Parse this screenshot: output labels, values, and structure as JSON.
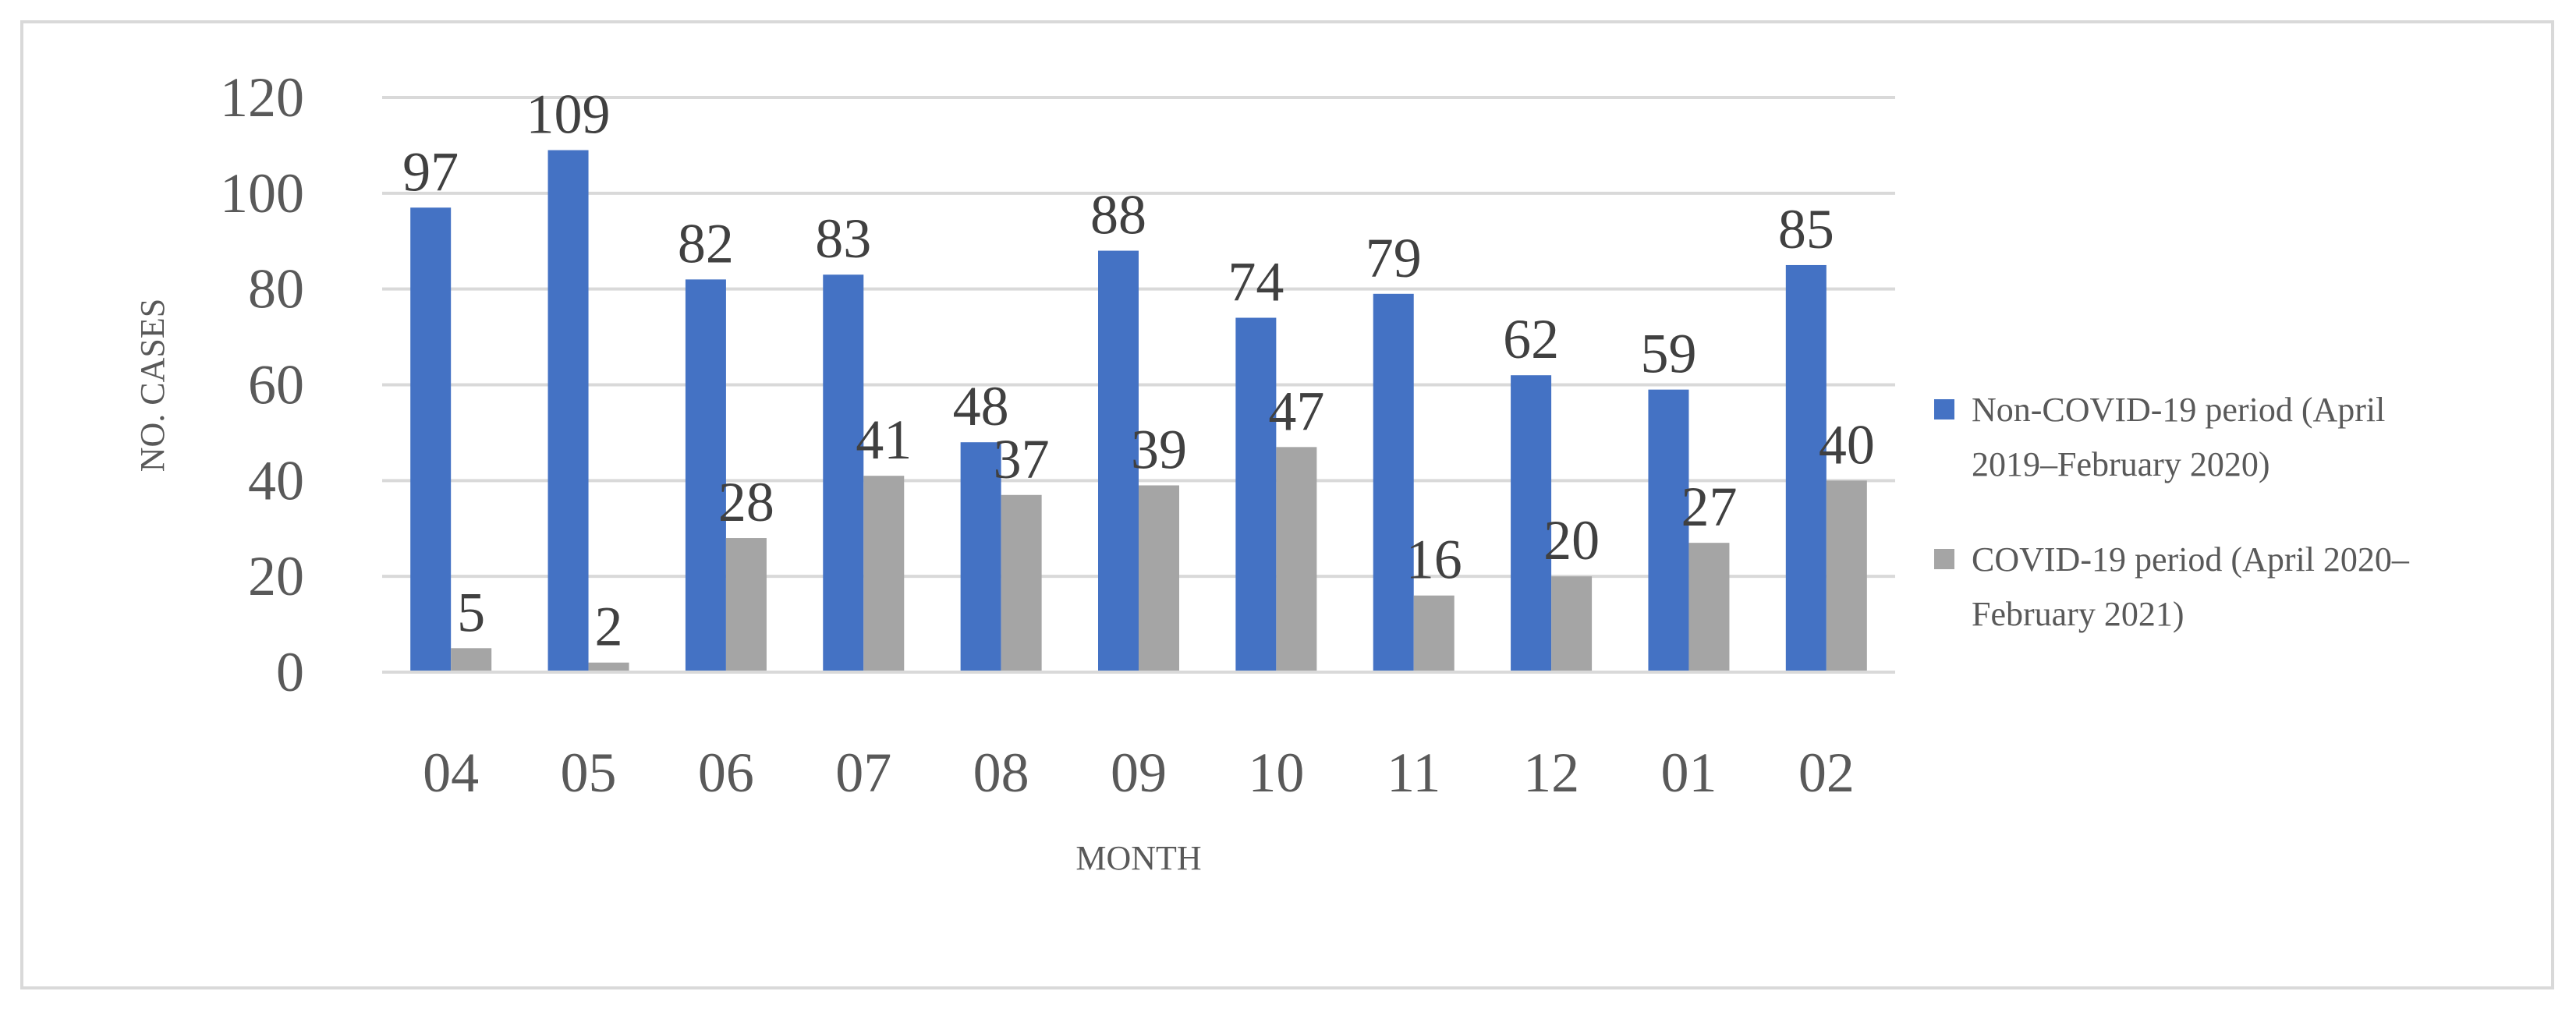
{
  "chart_data": {
    "type": "bar",
    "title": "",
    "xlabel": "MONTH",
    "ylabel": "NO. CASES",
    "categories": [
      "04",
      "05",
      "06",
      "07",
      "08",
      "09",
      "10",
      "11",
      "12",
      "01",
      "02"
    ],
    "series": [
      {
        "name": "Non-COVID-19 period (April 2019–February 2020)",
        "legend_lines": [
          "Non-COVID-19 period (April",
          "2019–February 2020)"
        ],
        "color": "#4472c4",
        "values": [
          97,
          109,
          82,
          83,
          48,
          88,
          74,
          79,
          62,
          59,
          85
        ]
      },
      {
        "name": "COVID-19 period (April 2020–February 2021)",
        "legend_lines": [
          "COVID-19 period (April 2020–",
          "February 2021)"
        ],
        "color": "#a5a5a5",
        "values": [
          5,
          2,
          28,
          41,
          37,
          39,
          47,
          16,
          20,
          27,
          40
        ]
      }
    ],
    "ylim": [
      0,
      120
    ],
    "yticks": [
      0,
      20,
      40,
      60,
      80,
      100,
      120
    ],
    "grid": true,
    "data_labels": true,
    "legend_position": "right"
  }
}
